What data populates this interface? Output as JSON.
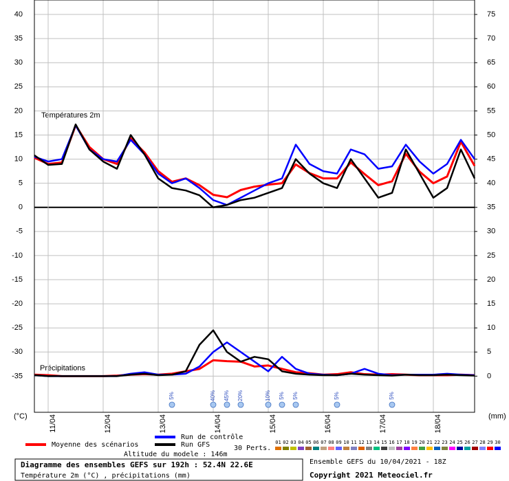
{
  "chart_data": [
    {
      "type": "line",
      "label": "Températures 2m",
      "ylabel": "(°C)",
      "x": [
        0,
        6,
        12,
        18,
        24,
        30,
        36,
        42,
        48,
        54,
        60,
        66,
        72,
        78,
        84,
        90,
        96,
        102,
        108,
        114,
        120,
        126,
        132,
        138,
        144,
        150,
        156,
        162,
        168,
        174,
        180,
        186,
        192
      ],
      "xlim": [
        0,
        192
      ],
      "xticks": [
        {
          "value": 6,
          "label": "11/04"
        },
        {
          "value": 30,
          "label": "12/04"
        },
        {
          "value": 54,
          "label": "13/04"
        },
        {
          "value": 78,
          "label": "14/04"
        },
        {
          "value": 102,
          "label": "15/04"
        },
        {
          "value": 126,
          "label": "16/04"
        },
        {
          "value": 150,
          "label": "17/04"
        },
        {
          "value": 174,
          "label": "18/04"
        }
      ],
      "ylim": [
        -42.5,
        43
      ],
      "yticks": [
        40,
        35,
        30,
        25,
        20,
        15,
        10,
        5,
        0,
        -5,
        -10,
        -15,
        -20,
        -25,
        -30,
        -35
      ],
      "grid": true,
      "series": [
        {
          "name": "Moyenne des scénarios",
          "color": "#ff0000",
          "values": [
            10.3,
            9,
            9.3,
            17,
            12.5,
            10,
            9,
            14.3,
            11.4,
            7.5,
            5.3,
            6,
            4.6,
            2.6,
            2.1,
            3.6,
            4.3,
            4.7,
            5,
            8.9,
            7.1,
            6,
            6,
            9.3,
            6.9,
            4.6,
            5.4,
            11.1,
            7.4,
            5,
            6.4,
            13.6,
            8.6
          ]
        },
        {
          "name": "Run de contrôle",
          "color": "#0000ff",
          "values": [
            10.5,
            9.5,
            10,
            17,
            12,
            10,
            9.5,
            14,
            11,
            7,
            5,
            6,
            4,
            1.5,
            0.5,
            2,
            3.5,
            5,
            6,
            13,
            9,
            7.5,
            7,
            12,
            11,
            8,
            8.5,
            13,
            9.5,
            7,
            9,
            14,
            10
          ]
        },
        {
          "name": "Run GFS",
          "color": "#000000",
          "values": [
            10.8,
            8.8,
            9,
            17.2,
            12,
            9.5,
            8,
            15,
            11,
            6,
            4,
            3.5,
            2.5,
            0,
            0.5,
            1.5,
            2,
            3,
            4,
            10,
            7,
            5,
            4,
            10,
            6,
            2,
            3,
            12,
            7,
            2,
            4,
            12,
            6
          ]
        }
      ]
    },
    {
      "type": "line",
      "label": "Précipitations",
      "y2label": "(mm)",
      "x": [
        0,
        6,
        12,
        18,
        24,
        30,
        36,
        42,
        48,
        54,
        60,
        66,
        72,
        78,
        84,
        90,
        96,
        102,
        108,
        114,
        120,
        126,
        132,
        138,
        144,
        150,
        156,
        162,
        168,
        174,
        180,
        186,
        192
      ],
      "xlim": [
        0,
        192
      ],
      "y2lim": [
        -7.5,
        78
      ],
      "y2ticks": [
        75,
        70,
        65,
        60,
        55,
        50,
        45,
        40,
        35,
        30,
        25,
        20,
        15,
        10,
        5,
        0
      ],
      "series": [
        {
          "name": "Moyenne des scénarios",
          "color": "#ff0000",
          "axis": "y2",
          "values": [
            0.3,
            0.2,
            0,
            0,
            0,
            0,
            0.1,
            0.3,
            0.4,
            0.3,
            0.5,
            1,
            1.5,
            3.3,
            3.1,
            3,
            2,
            2.2,
            1.5,
            0.8,
            0.6,
            0.3,
            0.4,
            0.8,
            0.4,
            0.3,
            0.4,
            0.3,
            0.2,
            0.2,
            0.2,
            0.3,
            0.2
          ]
        },
        {
          "name": "Run de contrôle",
          "color": "#0000ff",
          "axis": "y2",
          "values": [
            0.2,
            0,
            0,
            0,
            0,
            0,
            0,
            0.5,
            0.8,
            0.3,
            0.3,
            0.5,
            2,
            5,
            7,
            5,
            3,
            1,
            4,
            1.5,
            0.5,
            0.3,
            0.2,
            0.5,
            1.5,
            0.5,
            0.2,
            0.3,
            0.3,
            0.3,
            0.5,
            0.3,
            0.2
          ]
        },
        {
          "name": "Run GFS",
          "color": "#000000",
          "axis": "y2",
          "values": [
            0.2,
            0,
            0,
            0,
            0,
            0,
            0,
            0.3,
            0.5,
            0.2,
            0.3,
            1,
            6.5,
            9.5,
            5,
            3,
            4,
            3.5,
            1,
            0.5,
            0.3,
            0.2,
            0.2,
            0.5,
            0.3,
            0.2,
            0.1,
            0.3,
            0.2,
            0.2,
            0.3,
            0.2,
            0.1
          ]
        }
      ],
      "annotations": [
        {
          "x": 60,
          "label": "5%"
        },
        {
          "x": 78,
          "label": "40%"
        },
        {
          "x": 84,
          "label": "45%"
        },
        {
          "x": 90,
          "label": "20%"
        },
        {
          "x": 102,
          "label": "10%"
        },
        {
          "x": 108,
          "label": "5%"
        },
        {
          "x": 114,
          "label": "5%"
        },
        {
          "x": 132,
          "label": "5%"
        },
        {
          "x": 156,
          "label": "5%"
        }
      ]
    }
  ],
  "footer": {
    "perts_label": "30 Perts.",
    "perturbations": [
      {
        "label": "01",
        "color": "#e07000"
      },
      {
        "label": "02",
        "color": "#808000"
      },
      {
        "label": "03",
        "color": "#c0c000"
      },
      {
        "label": "04",
        "color": "#8040c0"
      },
      {
        "label": "05",
        "color": "#a06030"
      },
      {
        "label": "06",
        "color": "#008080"
      },
      {
        "label": "07",
        "color": "#c0a080"
      },
      {
        "label": "08",
        "color": "#ff8080"
      },
      {
        "label": "09",
        "color": "#6060ff"
      },
      {
        "label": "10",
        "color": "#c08040"
      },
      {
        "label": "11",
        "color": "#8080c0"
      },
      {
        "label": "12",
        "color": "#e06000"
      },
      {
        "label": "13",
        "color": "#808080"
      },
      {
        "label": "14",
        "color": "#00c080"
      },
      {
        "label": "15",
        "color": "#404040"
      },
      {
        "label": "16",
        "color": "#c0c0c0"
      },
      {
        "label": "17",
        "color": "#a040a0"
      },
      {
        "label": "18",
        "color": "#8000ff"
      },
      {
        "label": "19",
        "color": "#ff8040"
      },
      {
        "label": "20",
        "color": "#40a040"
      },
      {
        "label": "21",
        "color": "#ffc000"
      },
      {
        "label": "22",
        "color": "#0060c0"
      },
      {
        "label": "23",
        "color": "#808040"
      },
      {
        "label": "24",
        "color": "#ff00ff"
      },
      {
        "label": "25",
        "color": "#0000a0"
      },
      {
        "label": "26",
        "color": "#00a0a0"
      },
      {
        "label": "27",
        "color": "#a00000"
      },
      {
        "label": "28",
        "color": "#8080ff"
      },
      {
        "label": "29",
        "color": "#ff0000"
      },
      {
        "label": "30",
        "color": "#0000ff"
      }
    ],
    "altitude": "Altitude du modele : 146m",
    "box_title": "Diagramme des ensembles GEFS sur 192h : 52.4N 22.6E",
    "box_subtitle": "Température 2m (°C) , précipitations (mm)",
    "run": "Ensemble GEFS du 10/04/2021 - 18Z",
    "copyright": "Copyright 2021 Meteociel.fr"
  }
}
